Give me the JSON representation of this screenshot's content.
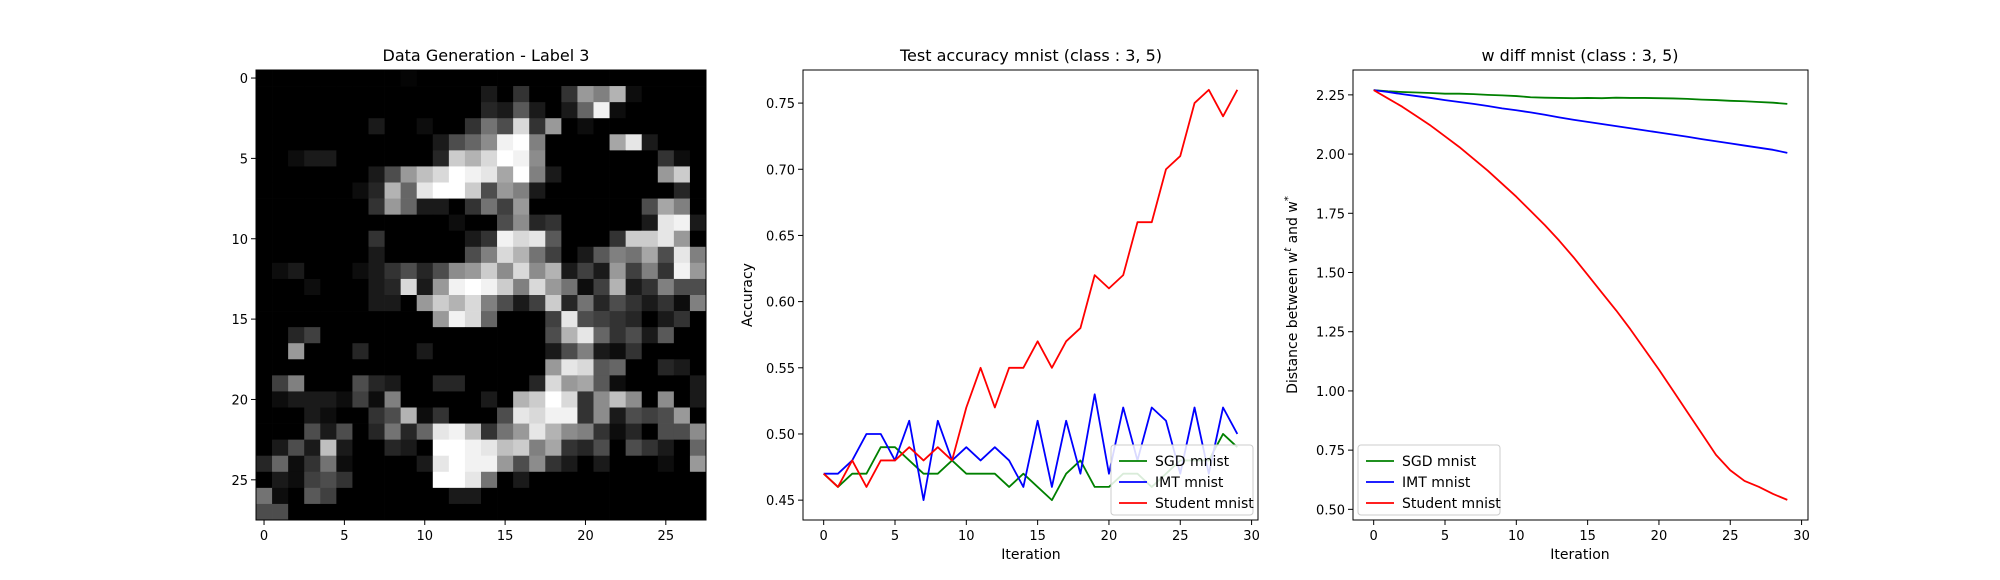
{
  "chart_data": [
    {
      "type": "heatmap",
      "title": "Data Generation - Label 3",
      "xlabel": "",
      "ylabel": "",
      "xticks": [
        0,
        5,
        10,
        15,
        20,
        25
      ],
      "yticks": [
        0,
        5,
        10,
        15,
        20,
        25
      ],
      "xlim": [
        -0.5,
        27.5
      ],
      "ylim": [
        27.5,
        -0.5
      ],
      "colormap": "gray",
      "shape": [
        28,
        28
      ],
      "values": [
        [
          0,
          0,
          0,
          0,
          0,
          0,
          0,
          0,
          0,
          0.02,
          0,
          0,
          0,
          0,
          0,
          0,
          0,
          0,
          0,
          0,
          0,
          0,
          0,
          0,
          0,
          0,
          0,
          0
        ],
        [
          0,
          0,
          0,
          0,
          0,
          0,
          0,
          0,
          0,
          0,
          0,
          0,
          0,
          0,
          0.1,
          0,
          0.2,
          0,
          0,
          0.2,
          0.6,
          0.5,
          0.7,
          0.05,
          0,
          0,
          0,
          0
        ],
        [
          0,
          0,
          0,
          0,
          0,
          0,
          0,
          0,
          0,
          0,
          0,
          0,
          0,
          0,
          0.15,
          0.1,
          0.35,
          0.1,
          0,
          0.1,
          0.4,
          0.95,
          0.05,
          0,
          0,
          0,
          0,
          0
        ],
        [
          0,
          0,
          0,
          0,
          0,
          0,
          0,
          0.1,
          0,
          0,
          0.05,
          0,
          0,
          0.2,
          0.45,
          0.3,
          0.85,
          0.2,
          0.6,
          0,
          0.05,
          0,
          0,
          0,
          0,
          0,
          0,
          0
        ],
        [
          0,
          0,
          0,
          0,
          0,
          0,
          0,
          0,
          0,
          0,
          0,
          0.1,
          0.3,
          0.4,
          0.55,
          0.95,
          1.0,
          0.5,
          0,
          0,
          0,
          0,
          0.65,
          0.9,
          0.1,
          0,
          0,
          0
        ],
        [
          0,
          0,
          0.05,
          0.1,
          0.1,
          0,
          0,
          0,
          0,
          0,
          0,
          0.15,
          0.8,
          0.7,
          0.85,
          1.0,
          0.95,
          0.55,
          0,
          0,
          0,
          0,
          0,
          0,
          0,
          0.2,
          0.05,
          0
        ],
        [
          0,
          0,
          0,
          0,
          0,
          0,
          0,
          0.1,
          0.3,
          0.6,
          0.75,
          0.85,
          1.0,
          0.95,
          0.9,
          0.65,
          1.0,
          0.5,
          0.1,
          0,
          0,
          0,
          0,
          0,
          0,
          0.6,
          0.8,
          0
        ],
        [
          0,
          0,
          0,
          0,
          0,
          0,
          0.05,
          0.15,
          0.7,
          0.4,
          0.9,
          1.0,
          1.0,
          0.8,
          0.3,
          0.6,
          0.5,
          0.1,
          0,
          0,
          0,
          0,
          0,
          0,
          0,
          0,
          0.15,
          0
        ],
        [
          0,
          0,
          0,
          0,
          0,
          0,
          0,
          0.2,
          0.6,
          0.4,
          0.1,
          0.1,
          0,
          0.2,
          0.45,
          0.25,
          0.6,
          0,
          0,
          0,
          0,
          0,
          0,
          0,
          0.3,
          0.65,
          0.5,
          0
        ],
        [
          0,
          0,
          0,
          0,
          0,
          0,
          0,
          0,
          0,
          0,
          0,
          0,
          0.05,
          0,
          0,
          0.3,
          0.55,
          0.15,
          0.2,
          0,
          0,
          0,
          0,
          0,
          0.1,
          0.9,
          0.95,
          0.1
        ],
        [
          0,
          0,
          0,
          0,
          0,
          0,
          0,
          0.2,
          0,
          0,
          0,
          0,
          0,
          0.1,
          0.2,
          0.95,
          0.85,
          0.9,
          0.35,
          0,
          0,
          0,
          0.2,
          0.8,
          0.8,
          0.9,
          0.6,
          0
        ],
        [
          0,
          0,
          0,
          0,
          0,
          0,
          0,
          0.1,
          0,
          0,
          0,
          0,
          0,
          0.3,
          0.5,
          0.85,
          0.7,
          0.45,
          0.25,
          0,
          0.1,
          0.35,
          0.5,
          0.45,
          0.65,
          0.3,
          0.9,
          0.5
        ],
        [
          0,
          0.05,
          0.1,
          0,
          0,
          0,
          0.05,
          0.1,
          0.2,
          0.3,
          0.15,
          0.3,
          0.55,
          0.6,
          0.8,
          0.55,
          0.85,
          0.55,
          0.7,
          0.1,
          0.25,
          0.1,
          0.6,
          0.25,
          0.5,
          0.2,
          0.95,
          0.6
        ],
        [
          0,
          0,
          0,
          0.05,
          0,
          0,
          0,
          0.1,
          0.15,
          0.85,
          0.1,
          0.6,
          0.95,
          1.0,
          0.95,
          0.8,
          0.5,
          0.85,
          0.6,
          0.45,
          0.05,
          0.25,
          0.7,
          0.1,
          0.2,
          0.5,
          0.3,
          0.3
        ],
        [
          0,
          0,
          0,
          0,
          0,
          0,
          0,
          0.1,
          0.1,
          0,
          0.6,
          0.8,
          0.7,
          0.85,
          0.5,
          0.3,
          0.1,
          0.25,
          0.8,
          0.15,
          0.45,
          0.15,
          0.3,
          0.2,
          0.1,
          0.2,
          0.05,
          0.5
        ],
        [
          0,
          0,
          0,
          0,
          0,
          0,
          0,
          0,
          0,
          0,
          0,
          0.6,
          0.95,
          0.85,
          0.4,
          0,
          0,
          0,
          0.25,
          0.9,
          0.3,
          0.25,
          0.2,
          0.15,
          0,
          0.1,
          0.2,
          0
        ],
        [
          0,
          0,
          0.15,
          0.25,
          0,
          0,
          0,
          0,
          0,
          0,
          0,
          0,
          0,
          0,
          0,
          0,
          0,
          0,
          0.3,
          0.7,
          0.9,
          0.4,
          0.2,
          0.3,
          0.1,
          0.35,
          0,
          0
        ],
        [
          0,
          0,
          0.6,
          0,
          0,
          0,
          0.15,
          0,
          0,
          0,
          0.1,
          0,
          0,
          0,
          0,
          0,
          0,
          0,
          0.1,
          0.3,
          0.5,
          0.1,
          0.05,
          0.2,
          0,
          0,
          0,
          0
        ],
        [
          0,
          0,
          0,
          0,
          0,
          0,
          0,
          0,
          0,
          0,
          0,
          0,
          0,
          0,
          0,
          0,
          0,
          0,
          0.6,
          0.9,
          0.85,
          0.35,
          0.4,
          0,
          0,
          0.15,
          0.1,
          0
        ],
        [
          0,
          0.25,
          0.5,
          0,
          0,
          0,
          0.3,
          0.15,
          0.1,
          0,
          0,
          0.15,
          0.15,
          0,
          0,
          0,
          0,
          0.15,
          0.85,
          0.6,
          0.65,
          0.35,
          0.05,
          0,
          0,
          0,
          0,
          0.1
        ],
        [
          0,
          0.05,
          0.1,
          0.1,
          0.1,
          0.05,
          0.25,
          0.05,
          0.5,
          0,
          0,
          0,
          0,
          0,
          0.1,
          0,
          0.7,
          0.8,
          1.0,
          0.85,
          0.2,
          0.55,
          0.75,
          0.55,
          0,
          0.55,
          0,
          0.1
        ],
        [
          0,
          0,
          0,
          0.1,
          0.05,
          0,
          0,
          0.2,
          0.3,
          0.7,
          0.05,
          0.2,
          0,
          0,
          0,
          0.3,
          0.9,
          0.85,
          0.95,
          0.95,
          0.2,
          0.55,
          0.1,
          0.3,
          0.25,
          0.3,
          0.6,
          0
        ],
        [
          0,
          0,
          0,
          0.3,
          0.1,
          0.3,
          0,
          0.15,
          0.45,
          0.15,
          0.4,
          0.9,
          0.95,
          0.75,
          0.2,
          0.45,
          0.6,
          0.9,
          0.7,
          0.55,
          0.5,
          0.2,
          0.05,
          0.15,
          0,
          0.3,
          0.3,
          0.55
        ],
        [
          0,
          0.1,
          0.3,
          0.1,
          0.75,
          0.1,
          0,
          0,
          0.15,
          0.1,
          0,
          1.0,
          1.0,
          0.95,
          0.9,
          0.75,
          0.8,
          0.5,
          0.65,
          0.2,
          0.15,
          0.3,
          0,
          0.3,
          0.2,
          0.1,
          0,
          0.4
        ],
        [
          0.15,
          0.4,
          0.05,
          0.2,
          0.45,
          0.05,
          0,
          0,
          0,
          0,
          0.1,
          0.9,
          1.0,
          0.95,
          0.95,
          0.6,
          0.3,
          0.55,
          0.2,
          0.1,
          0,
          0.1,
          0,
          0,
          0,
          0.05,
          0,
          0.6
        ],
        [
          0,
          0.1,
          0.05,
          0.25,
          0.3,
          0.2,
          0,
          0,
          0,
          0,
          0,
          1.0,
          1.0,
          0.9,
          0.45,
          0,
          0.1,
          0,
          0,
          0,
          0,
          0,
          0,
          0,
          0,
          0,
          0,
          0
        ],
        [
          0.45,
          0.05,
          0,
          0.35,
          0.25,
          0,
          0,
          0,
          0,
          0,
          0,
          0,
          0.1,
          0.1,
          0,
          0,
          0,
          0,
          0,
          0,
          0,
          0,
          0,
          0,
          0,
          0,
          0,
          0
        ],
        [
          0.3,
          0.3,
          0,
          0,
          0,
          0,
          0,
          0,
          0,
          0,
          0,
          0,
          0,
          0,
          0,
          0,
          0,
          0,
          0,
          0,
          0,
          0,
          0,
          0,
          0,
          0,
          0,
          0
        ]
      ]
    },
    {
      "type": "line",
      "title": "Test accuracy mnist (class : 3, 5)",
      "xlabel": "Iteration",
      "ylabel": "Accuracy",
      "xlim": [
        -1.45,
        30.45
      ],
      "ylim": [
        0.435,
        0.775
      ],
      "xticks": [
        0,
        5,
        10,
        15,
        20,
        25,
        30
      ],
      "yticks": [
        0.45,
        0.5,
        0.55,
        0.6,
        0.65,
        0.7,
        0.75
      ],
      "ytick_labels": [
        "0.45",
        "0.50",
        "0.55",
        "0.60",
        "0.65",
        "0.70",
        "0.75"
      ],
      "grid": false,
      "legend": "lower-right",
      "x": [
        0,
        1,
        2,
        3,
        4,
        5,
        6,
        7,
        8,
        9,
        10,
        11,
        12,
        13,
        14,
        15,
        16,
        17,
        18,
        19,
        20,
        21,
        22,
        23,
        24,
        25,
        26,
        27,
        28,
        29
      ],
      "series": [
        {
          "name": "SGD mnist",
          "color": "#008000",
          "values": [
            0.47,
            0.46,
            0.47,
            0.47,
            0.49,
            0.49,
            0.48,
            0.47,
            0.47,
            0.48,
            0.47,
            0.47,
            0.47,
            0.46,
            0.47,
            0.46,
            0.45,
            0.47,
            0.48,
            0.46,
            0.46,
            0.47,
            0.47,
            0.46,
            0.47,
            0.48,
            0.48,
            0.48,
            0.5,
            0.49
          ]
        },
        {
          "name": "IMT mnist",
          "color": "#0000ff",
          "values": [
            0.47,
            0.47,
            0.48,
            0.5,
            0.5,
            0.48,
            0.51,
            0.45,
            0.51,
            0.48,
            0.49,
            0.48,
            0.49,
            0.48,
            0.46,
            0.51,
            0.46,
            0.51,
            0.47,
            0.53,
            0.47,
            0.52,
            0.48,
            0.52,
            0.51,
            0.47,
            0.52,
            0.47,
            0.52,
            0.5
          ]
        },
        {
          "name": "Student mnist",
          "color": "#ff0000",
          "values": [
            0.47,
            0.46,
            0.48,
            0.46,
            0.48,
            0.48,
            0.49,
            0.48,
            0.49,
            0.48,
            0.52,
            0.55,
            0.52,
            0.55,
            0.55,
            0.57,
            0.55,
            0.57,
            0.58,
            0.62,
            0.61,
            0.62,
            0.66,
            0.66,
            0.7,
            0.71,
            0.75,
            0.76,
            0.74,
            0.76
          ]
        }
      ]
    },
    {
      "type": "line",
      "title": "w diff mnist (class : 3, 5)",
      "xlabel": "Iteration",
      "ylabel": "Distance between w",
      "ylabel_sup_t": "t",
      "ylabel_mid": " and w",
      "ylabel_sup_star": "*",
      "xlim": [
        -1.45,
        30.45
      ],
      "ylim": [
        0.455,
        2.355
      ],
      "xticks": [
        0,
        5,
        10,
        15,
        20,
        25,
        30
      ],
      "yticks": [
        0.5,
        0.75,
        1.0,
        1.25,
        1.5,
        1.75,
        2.0,
        2.25
      ],
      "ytick_labels": [
        "0.50",
        "0.75",
        "1.00",
        "1.25",
        "1.50",
        "1.75",
        "2.00",
        "2.25"
      ],
      "grid": false,
      "legend": "lower-left",
      "x": [
        0,
        1,
        2,
        3,
        4,
        5,
        6,
        7,
        8,
        9,
        10,
        11,
        12,
        13,
        14,
        15,
        16,
        17,
        18,
        19,
        20,
        21,
        22,
        23,
        24,
        25,
        26,
        27,
        28,
        29
      ],
      "series": [
        {
          "name": "SGD mnist",
          "color": "#008000",
          "values": [
            2.27,
            2.265,
            2.262,
            2.26,
            2.258,
            2.255,
            2.255,
            2.253,
            2.25,
            2.248,
            2.245,
            2.24,
            2.238,
            2.237,
            2.236,
            2.237,
            2.236,
            2.238,
            2.237,
            2.237,
            2.236,
            2.235,
            2.233,
            2.23,
            2.228,
            2.225,
            2.223,
            2.22,
            2.217,
            2.212
          ]
        },
        {
          "name": "IMT mnist",
          "color": "#0000ff",
          "values": [
            2.27,
            2.262,
            2.253,
            2.245,
            2.237,
            2.228,
            2.22,
            2.212,
            2.203,
            2.193,
            2.185,
            2.176,
            2.166,
            2.155,
            2.145,
            2.136,
            2.127,
            2.118,
            2.109,
            2.1,
            2.091,
            2.082,
            2.073,
            2.063,
            2.054,
            2.045,
            2.036,
            2.027,
            2.018,
            2.005
          ]
        },
        {
          "name": "Student mnist",
          "color": "#ff0000",
          "values": [
            2.27,
            2.235,
            2.2,
            2.16,
            2.12,
            2.075,
            2.03,
            1.98,
            1.93,
            1.875,
            1.82,
            1.76,
            1.7,
            1.635,
            1.565,
            1.49,
            1.415,
            1.34,
            1.26,
            1.175,
            1.09,
            1.0,
            0.91,
            0.82,
            0.73,
            0.665,
            0.62,
            0.595,
            0.565,
            0.54
          ]
        }
      ]
    }
  ]
}
